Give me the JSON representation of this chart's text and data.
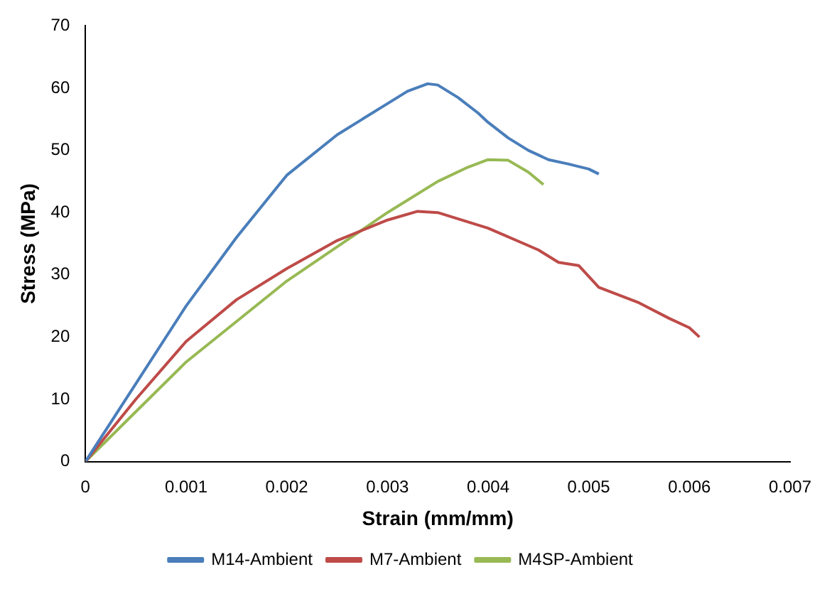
{
  "chart_data": {
    "type": "line",
    "xlabel": "Strain (mm/mm)",
    "ylabel": "Stress (MPa)",
    "xlim": [
      0,
      0.007
    ],
    "xticks": [
      0,
      0.001,
      0.002,
      0.003,
      0.004,
      0.005,
      0.006,
      0.007
    ],
    "ylim": [
      0,
      70
    ],
    "yticks": [
      0,
      10,
      20,
      30,
      40,
      50,
      60,
      70
    ],
    "grid": false,
    "legend": "bottom",
    "marker": "none",
    "series": [
      {
        "name": "M14-Ambient",
        "color": "#4a7ebb",
        "x": [
          0,
          0.0005,
          0.001,
          0.0015,
          0.002,
          0.0025,
          0.003,
          0.0032,
          0.0034,
          0.0035,
          0.0037,
          0.0039,
          0.004,
          0.0042,
          0.0044,
          0.0046,
          0.0048,
          0.005,
          0.0051
        ],
        "values": [
          0,
          12.5,
          25,
          36,
          46,
          52.5,
          57.5,
          59.5,
          60.7,
          60.5,
          58.5,
          56,
          54.5,
          52,
          50,
          48.5,
          47.8,
          47,
          46.2
        ]
      },
      {
        "name": "M7-Ambient",
        "color": "#be4b48",
        "x": [
          0,
          0.0005,
          0.001,
          0.0015,
          0.002,
          0.0025,
          0.003,
          0.0033,
          0.0035,
          0.004,
          0.0045,
          0.0047,
          0.0049,
          0.0051,
          0.0055,
          0.0058,
          0.006,
          0.0061
        ],
        "values": [
          0,
          10,
          19.3,
          26,
          31,
          35.5,
          38.8,
          40.2,
          40,
          37.5,
          34,
          32,
          31.5,
          28,
          25.5,
          23,
          21.5,
          20
        ]
      },
      {
        "name": "M4SP-Ambient",
        "color": "#98b954",
        "x": [
          0,
          0.0005,
          0.001,
          0.0015,
          0.002,
          0.0025,
          0.003,
          0.0035,
          0.0038,
          0.004,
          0.0042,
          0.0044,
          0.00455
        ],
        "values": [
          0,
          8,
          16,
          22.5,
          29,
          34.5,
          40,
          45,
          47.3,
          48.5,
          48.4,
          46.5,
          44.5
        ]
      }
    ]
  }
}
